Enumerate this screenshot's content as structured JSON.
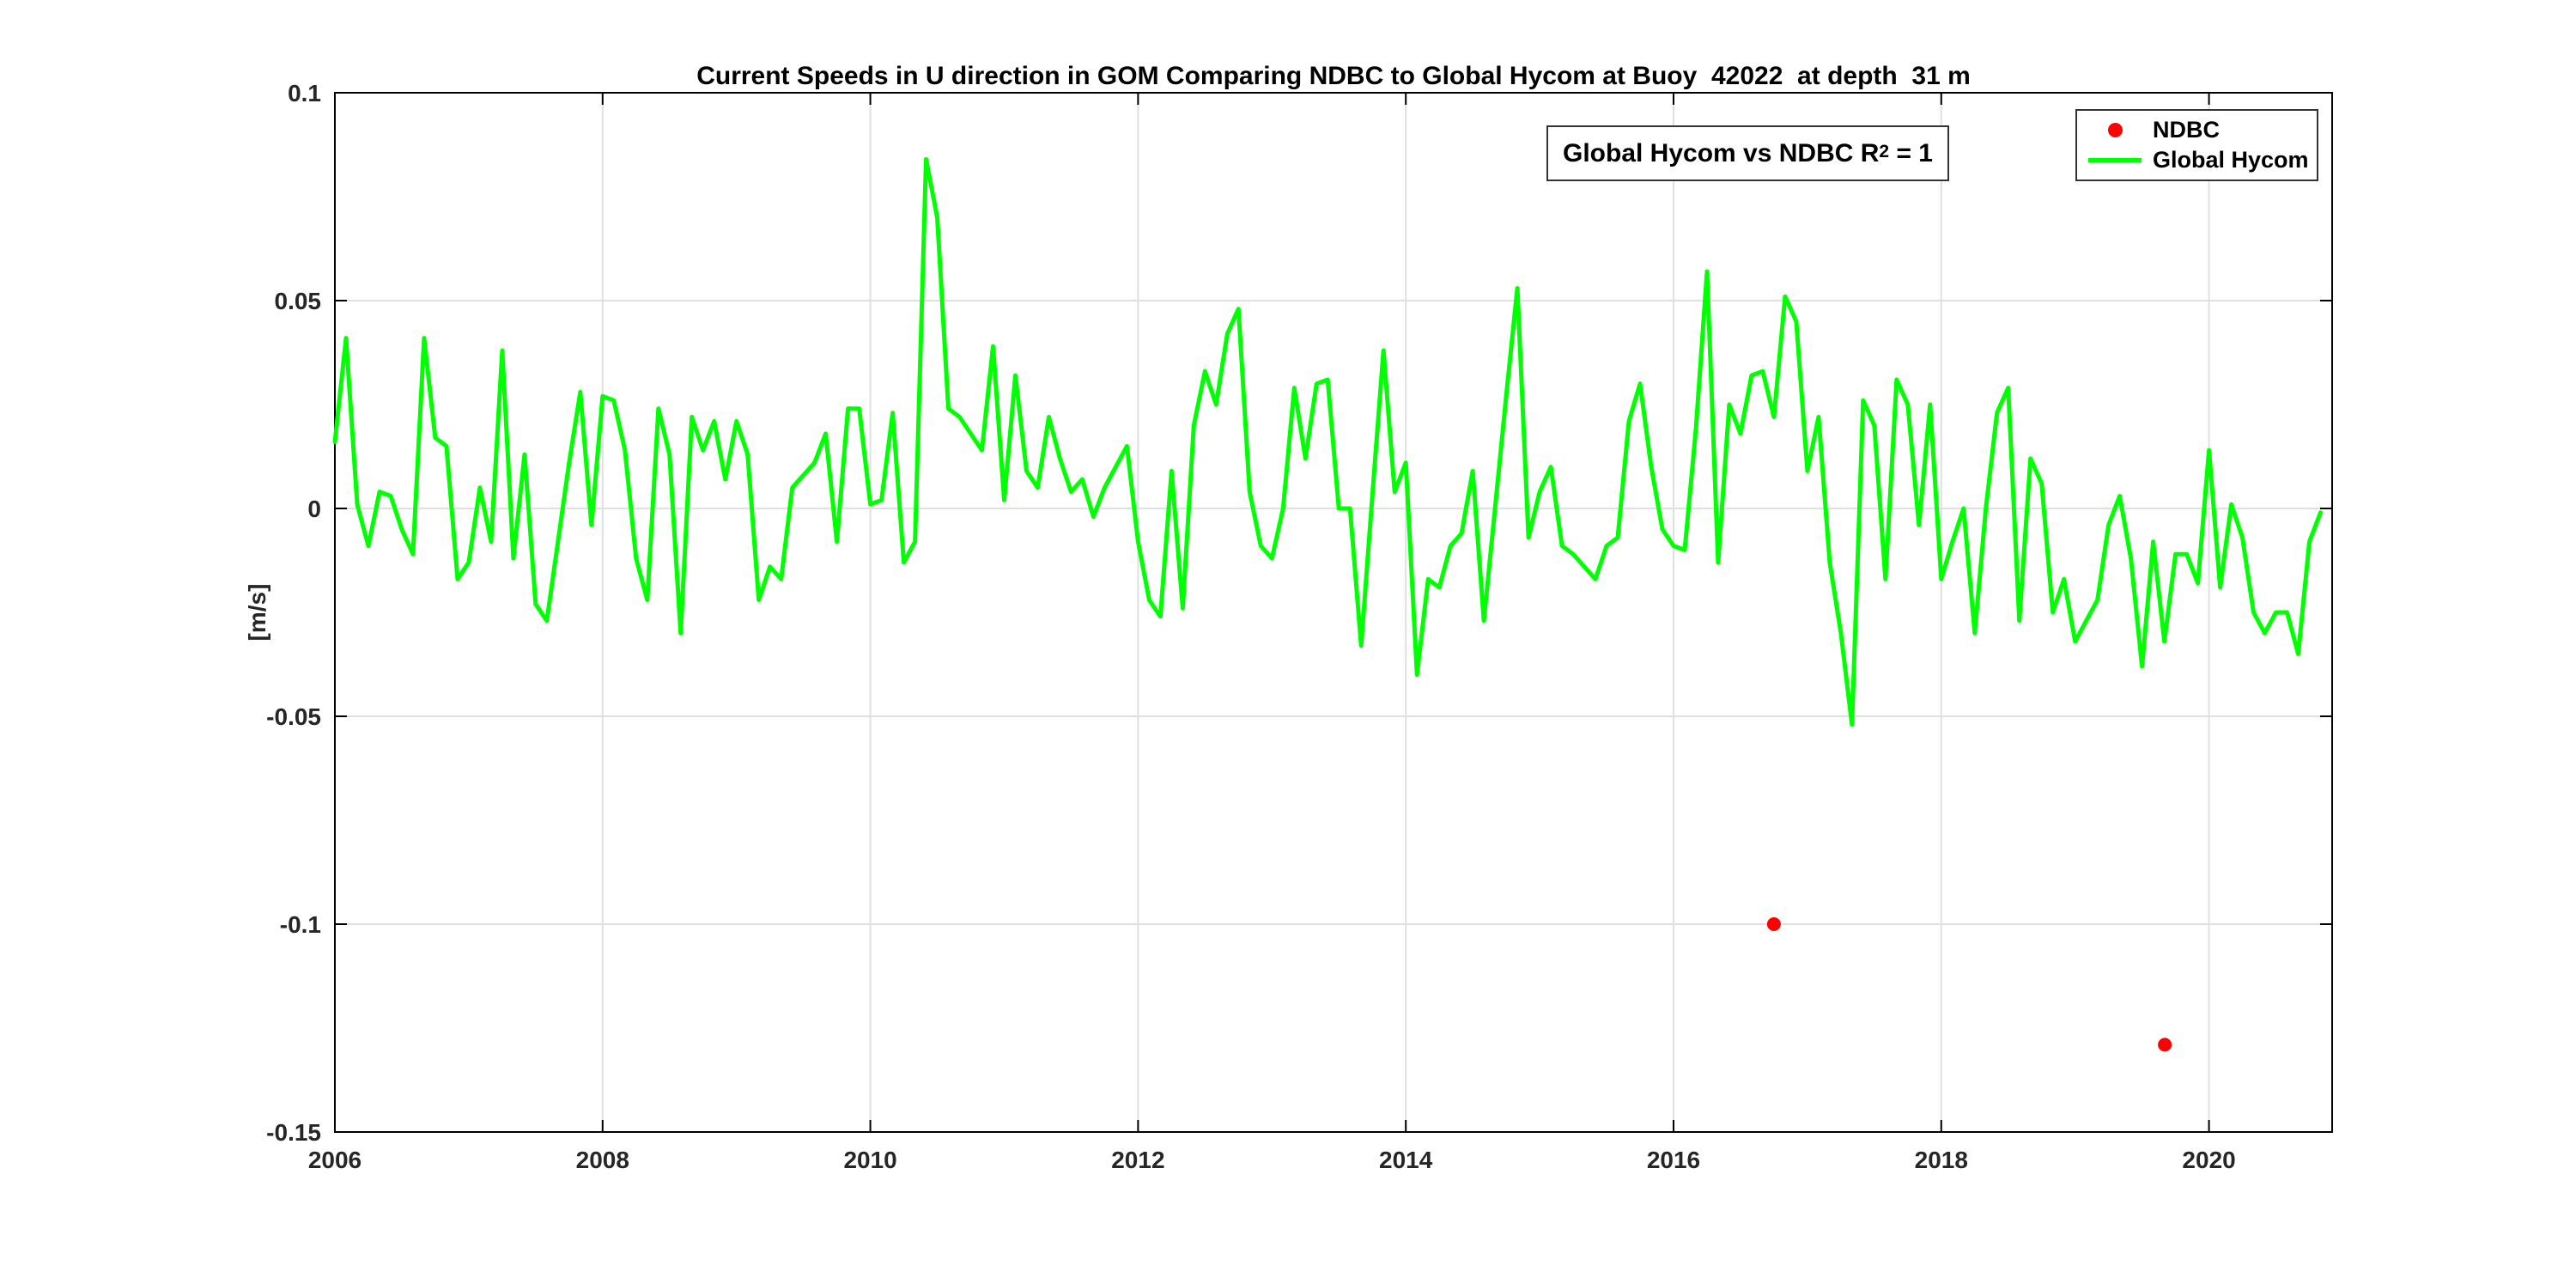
{
  "figure": {
    "title": "Current Speeds in U direction in GOM Comparing NDBC to Global Hycom at Buoy  42022  at depth  31 m",
    "ylabel": "[m/s]",
    "annotation": {
      "text_prefix": "Global Hycom vs NDBC R",
      "superscript": "2",
      "text_suffix": " = 1"
    },
    "legend": {
      "items": [
        {
          "label": "NDBC",
          "marker": "dot",
          "color": "#ff0000"
        },
        {
          "label": "Global Hycom",
          "marker": "line",
          "color": "#00ff00"
        }
      ]
    },
    "colors": {
      "ndbc": "#ff0000",
      "hycom": "#00ff00",
      "grid": "#e0e0e0",
      "axis": "#000000",
      "tick_label": "#262626"
    }
  },
  "chart_data": {
    "type": "line",
    "title": "Current Speeds in U direction in GOM Comparing NDBC to Global Hycom at Buoy  42022  at depth  31 m",
    "xlabel": "",
    "ylabel": "[m/s]",
    "xlim": [
      2006,
      2020.92
    ],
    "ylim": [
      -0.15,
      0.1
    ],
    "xticks": [
      2006,
      2008,
      2010,
      2012,
      2014,
      2016,
      2018,
      2020
    ],
    "xtick_labels": [
      "2006",
      "2008",
      "2010",
      "2012",
      "2014",
      "2016",
      "2018",
      "2020"
    ],
    "yticks": [
      -0.15,
      -0.1,
      -0.05,
      0,
      0.05,
      0.1
    ],
    "ytick_labels": [
      "-0.15",
      "-0.1",
      "-0.05",
      "0",
      "0.05",
      "0.1"
    ],
    "grid": true,
    "legend_position": "top-right",
    "series": [
      {
        "name": "Global Hycom",
        "type": "line",
        "color": "#00ff00",
        "x_start": 2006.0,
        "x_step": 0.0833333,
        "values": [
          0.016,
          0.041,
          0.001,
          -0.009,
          0.004,
          0.003,
          -0.005,
          -0.011,
          0.041,
          0.017,
          0.015,
          -0.017,
          -0.013,
          0.005,
          -0.008,
          0.038,
          -0.012,
          0.013,
          -0.023,
          -0.027,
          -0.008,
          0.011,
          0.028,
          -0.004,
          0.027,
          0.026,
          0.014,
          -0.012,
          -0.022,
          0.024,
          0.013,
          -0.03,
          0.022,
          0.014,
          0.021,
          0.007,
          0.021,
          0.013,
          -0.022,
          -0.014,
          -0.017,
          0.005,
          0.008,
          0.011,
          0.018,
          -0.008,
          0.024,
          0.024,
          0.001,
          0.002,
          0.023,
          -0.013,
          -0.008,
          0.084,
          0.07,
          0.024,
          0.022,
          0.018,
          0.014,
          0.039,
          0.002,
          0.032,
          0.009,
          0.005,
          0.022,
          0.012,
          0.004,
          0.007,
          -0.002,
          0.005,
          0.01,
          0.015,
          -0.008,
          -0.022,
          -0.026,
          0.009,
          -0.024,
          0.02,
          0.033,
          0.025,
          0.042,
          0.048,
          0.004,
          -0.009,
          -0.012,
          0.0,
          0.029,
          0.012,
          0.03,
          0.031,
          0.0,
          0.0,
          -0.033,
          0.003,
          0.038,
          0.004,
          0.011,
          -0.04,
          -0.017,
          -0.019,
          -0.009,
          -0.006,
          0.009,
          -0.027,
          0.0,
          0.027,
          0.053,
          -0.007,
          0.004,
          0.01,
          -0.009,
          -0.011,
          -0.014,
          -0.017,
          -0.009,
          -0.007,
          0.021,
          0.03,
          0.01,
          -0.005,
          -0.009,
          -0.01,
          0.019,
          0.057,
          -0.013,
          0.025,
          0.018,
          0.032,
          0.033,
          0.022,
          0.051,
          0.045,
          0.009,
          0.022,
          -0.013,
          -0.03,
          -0.052,
          0.026,
          0.02,
          -0.017,
          0.031,
          0.025,
          -0.004,
          0.025,
          -0.017,
          -0.008,
          0.0,
          -0.03,
          0.0,
          0.023,
          0.029,
          -0.027,
          0.012,
          0.006,
          -0.025,
          -0.017,
          -0.032,
          -0.027,
          -0.022,
          -0.004,
          0.003,
          -0.012,
          -0.038,
          -0.008,
          -0.032,
          -0.011,
          -0.011,
          -0.018,
          0.014,
          -0.019,
          0.001,
          -0.007,
          -0.025,
          -0.03,
          -0.025,
          -0.025,
          -0.035,
          -0.008,
          -0.001
        ]
      },
      {
        "name": "NDBC",
        "type": "scatter",
        "color": "#ff0000",
        "marker": "dot",
        "x": [
          2016.75,
          2019.67
        ],
        "y": [
          -0.1,
          -0.129
        ]
      }
    ]
  }
}
